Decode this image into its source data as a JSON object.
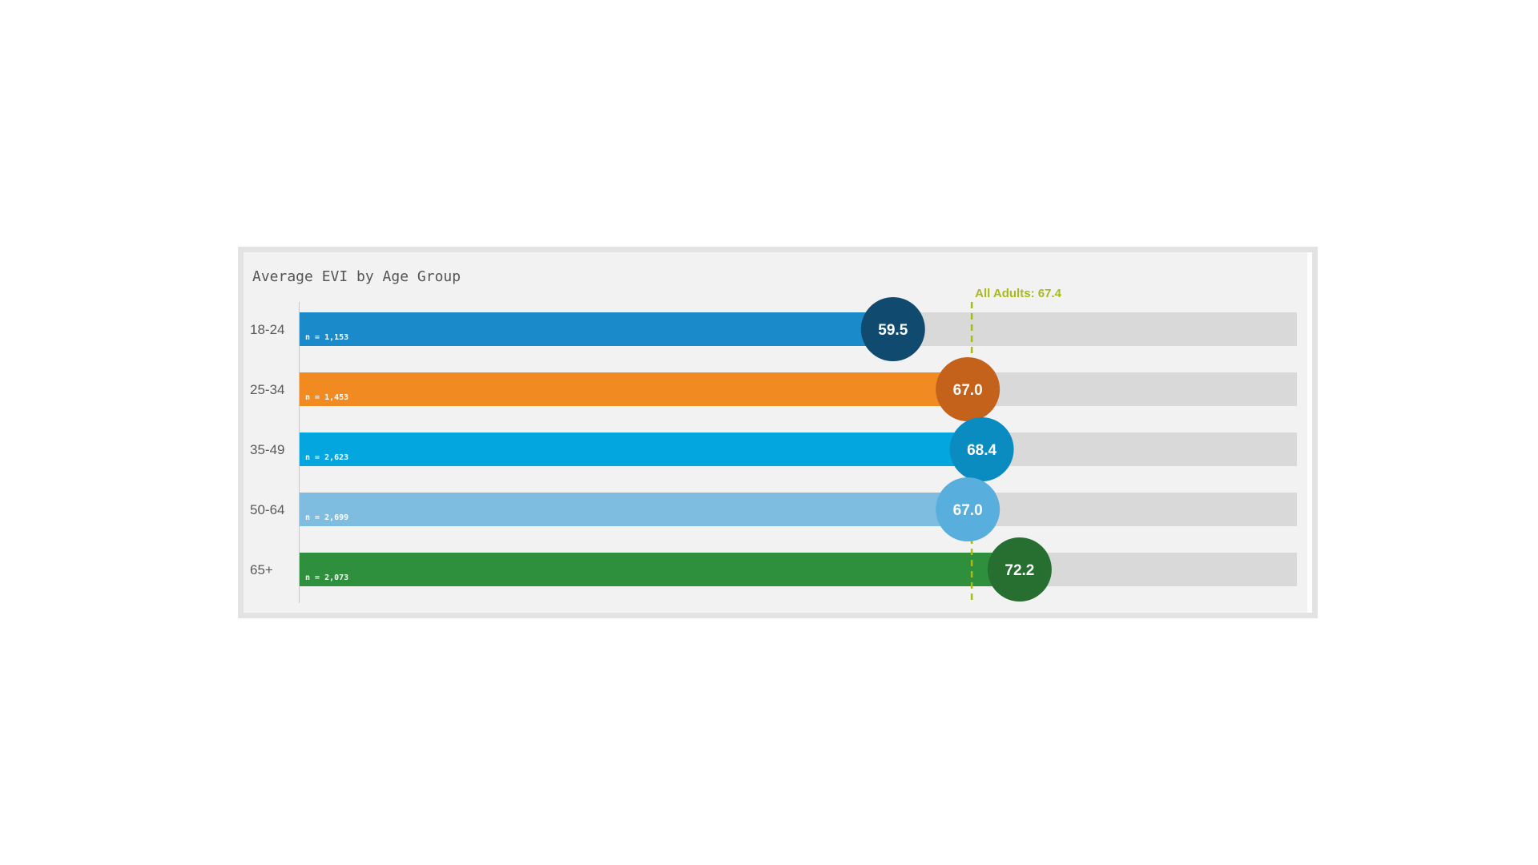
{
  "chart_data": {
    "type": "bar",
    "orientation": "horizontal",
    "title": "Average EVI by Age Group",
    "xlim": [
      0,
      100
    ],
    "categories": [
      "18-24",
      "25-34",
      "35-49",
      "50-64",
      "65+"
    ],
    "values": [
      59.5,
      67.0,
      68.4,
      67.0,
      72.2
    ],
    "value_labels": [
      "59.5",
      "67.0",
      "68.4",
      "67.0",
      "72.2"
    ],
    "n_labels": [
      "n = 1,153",
      "n = 1,453",
      "n = 2,623",
      "n = 2,699",
      "n = 2,073"
    ],
    "bar_colors": [
      "#1a8acb",
      "#f28a22",
      "#04a6df",
      "#7fbde0",
      "#2e8f3c"
    ],
    "marker_colors": [
      "#114a6f",
      "#c4621c",
      "#0a8cc0",
      "#58aedc",
      "#276e31"
    ],
    "track_color": "#d9d9d9",
    "reference_line": {
      "value": 67.4,
      "label": "All Adults: 67.4",
      "color": "#a8ba1c"
    },
    "grid": false,
    "legend": "none"
  }
}
